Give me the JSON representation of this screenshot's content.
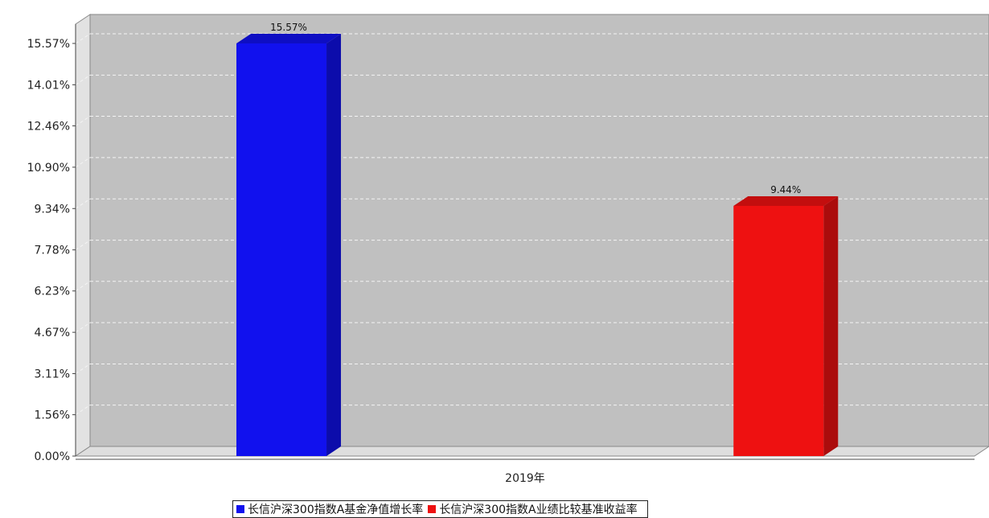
{
  "chart_data": {
    "type": "bar",
    "title": "",
    "xlabel": "",
    "ylabel": "",
    "categories": [
      "2019年"
    ],
    "series": [
      {
        "name": "长信沪深300指数A基金净值增长率",
        "value": 15.57,
        "label": "15.57%",
        "color": "#1111ee"
      },
      {
        "name": "长信沪深300指数A业绩比较基准收益率",
        "value": 9.44,
        "label": "9.44%",
        "color": "#ee1111"
      }
    ],
    "yticks": [
      0.0,
      1.56,
      3.11,
      4.67,
      6.23,
      7.78,
      9.34,
      10.9,
      12.46,
      14.01,
      15.57
    ],
    "ytick_labels": [
      "0.00%",
      "1.56%",
      "3.11%",
      "4.67%",
      "6.23%",
      "7.78%",
      "9.34%",
      "10.90%",
      "12.46%",
      "14.01%",
      "15.57%"
    ],
    "ylim": [
      0,
      15.57
    ],
    "grid": true,
    "legend_position": "bottom",
    "colors": {
      "plot_bg": "#c0c0c0",
      "side_wall": "#e2e2e2",
      "floor": "#dedede"
    }
  }
}
